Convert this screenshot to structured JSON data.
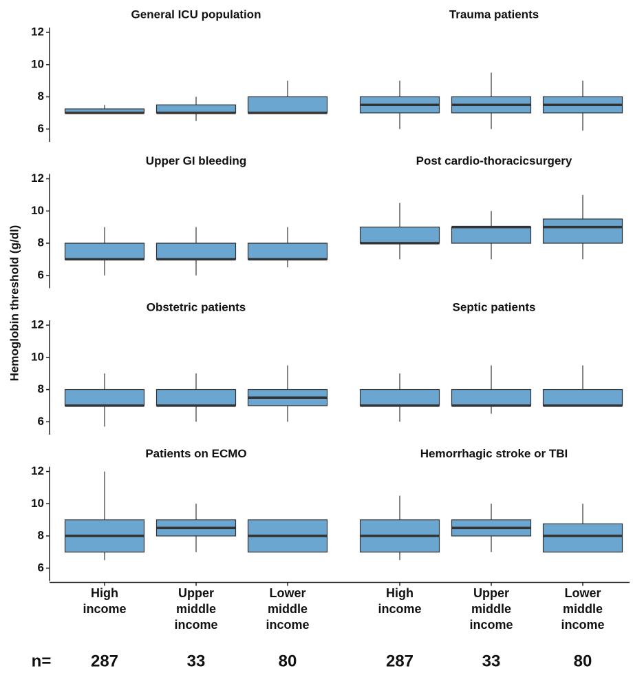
{
  "chart_data": {
    "type": "box",
    "y_label": "Hemoglobin threshold (g/dl)",
    "categories": [
      "High income",
      "Upper middle income",
      "Lower middle income"
    ],
    "n_label": "n=",
    "n": [
      287,
      33,
      80
    ],
    "ylim": [
      5.2,
      12.3
    ],
    "yticks": [
      6,
      8,
      10,
      12
    ],
    "color": "#6aa6d0",
    "panels": [
      {
        "title": "General ICU population",
        "boxes": [
          {
            "min": 6.95,
            "q1": 7,
            "median": 7,
            "q3": 7.25,
            "max": 7.5
          },
          {
            "min": 6.5,
            "q1": 7,
            "median": 7,
            "q3": 7.5,
            "max": 8
          },
          {
            "min": 7,
            "q1": 7,
            "median": 7,
            "q3": 8,
            "max": 9
          }
        ]
      },
      {
        "title": "Trauma patients",
        "boxes": [
          {
            "min": 6,
            "q1": 7,
            "median": 7.5,
            "q3": 8,
            "max": 9
          },
          {
            "min": 6,
            "q1": 7,
            "median": 7.5,
            "q3": 8,
            "max": 9.5
          },
          {
            "min": 5.9,
            "q1": 7,
            "median": 7.5,
            "q3": 8,
            "max": 9
          }
        ]
      },
      {
        "title": "Upper GI bleeding",
        "boxes": [
          {
            "min": 6,
            "q1": 7,
            "median": 7,
            "q3": 8,
            "max": 9
          },
          {
            "min": 6,
            "q1": 7,
            "median": 7,
            "q3": 8,
            "max": 9
          },
          {
            "min": 6.5,
            "q1": 7,
            "median": 7,
            "q3": 8,
            "max": 9
          }
        ]
      },
      {
        "title": "Post cardio-thoracicsurgery",
        "boxes": [
          {
            "min": 7,
            "q1": 8,
            "median": 8,
            "q3": 9,
            "max": 10.5
          },
          {
            "min": 7,
            "q1": 8,
            "median": 9,
            "q3": 9,
            "max": 10
          },
          {
            "min": 7,
            "q1": 8,
            "median": 9,
            "q3": 9.5,
            "max": 11
          }
        ]
      },
      {
        "title": "Obstetric patients",
        "boxes": [
          {
            "min": 5.7,
            "q1": 7,
            "median": 7,
            "q3": 8,
            "max": 9
          },
          {
            "min": 6,
            "q1": 7,
            "median": 7,
            "q3": 8,
            "max": 9
          },
          {
            "min": 6,
            "q1": 7,
            "median": 7.5,
            "q3": 8,
            "max": 9.5
          }
        ]
      },
      {
        "title": "Septic patients",
        "boxes": [
          {
            "min": 6,
            "q1": 7,
            "median": 7,
            "q3": 8,
            "max": 9
          },
          {
            "min": 6.5,
            "q1": 7,
            "median": 7,
            "q3": 8,
            "max": 9.5
          },
          {
            "min": 7,
            "q1": 7,
            "median": 7,
            "q3": 8,
            "max": 9.5
          }
        ]
      },
      {
        "title": "Patients on ECMO",
        "boxes": [
          {
            "min": 6.5,
            "q1": 7,
            "median": 8,
            "q3": 9,
            "max": 12
          },
          {
            "min": 7,
            "q1": 8,
            "median": 8.5,
            "q3": 9,
            "max": 10
          },
          {
            "min": 7,
            "q1": 7,
            "median": 8,
            "q3": 9,
            "max": 9
          }
        ]
      },
      {
        "title": "Hemorrhagic stroke or TBI",
        "boxes": [
          {
            "min": 6.5,
            "q1": 7,
            "median": 8,
            "q3": 9,
            "max": 10.5
          },
          {
            "min": 7,
            "q1": 8,
            "median": 8.5,
            "q3": 9,
            "max": 10
          },
          {
            "min": 7,
            "q1": 7,
            "median": 8,
            "q3": 8.75,
            "max": 10
          }
        ]
      }
    ]
  }
}
